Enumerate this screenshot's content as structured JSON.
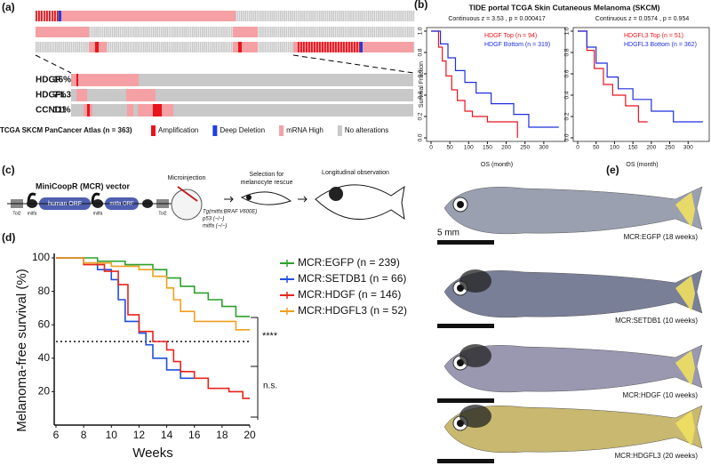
{
  "panel_labels": [
    "(a)",
    "(b)",
    "(c)",
    "(d)",
    "(e)"
  ],
  "panel_a": {
    "genes": [
      {
        "name": "HDGF",
        "pct": "16%"
      },
      {
        "name": "HDGFL3",
        "pct": "7%"
      },
      {
        "name": "CCND1",
        "pct": "11%"
      }
    ],
    "study": "TCGA SKCM PanCancer Atlas (n = 363)",
    "legend": [
      {
        "label": "Amplification",
        "color": "#e8141c"
      },
      {
        "label": "Deep Deletion",
        "color": "#1f3fe0"
      },
      {
        "label": "mRNA High",
        "color": "#f4a0a4"
      },
      {
        "label": "No alterations",
        "color": "#c8c8c8"
      }
    ]
  },
  "panel_b_title": "TIDE portal  TCGA Skin Cutaneous Melanoma (SKCM)",
  "chart_data": [
    {
      "type": "km",
      "subtitle": "Continuous z = 3.53 , p = 0.000417",
      "xlabel": "OS (month)",
      "ylabel": "Survival Fraction",
      "xlim": [
        0,
        350
      ],
      "xticks": [
        0,
        50,
        100,
        150,
        200,
        250,
        300
      ],
      "ylim": [
        0,
        1
      ],
      "yticks": [
        {
          "value": 0,
          "label": "0.0"
        },
        {
          "value": 0.2,
          "label": "0.2"
        },
        {
          "value": 0.4,
          "label": "0.4"
        },
        {
          "value": 0.6,
          "label": "0.6"
        },
        {
          "value": 0.8,
          "label": "0.8"
        },
        {
          "value": 1,
          "label": "1.0"
        }
      ],
      "series": [
        {
          "name": "HDGF Top (n = 94)",
          "color": "#e8141c",
          "x": [
            0,
            20,
            20,
            30,
            30,
            40,
            40,
            55,
            55,
            70,
            70,
            90,
            90,
            110,
            110,
            150,
            150,
            230,
            230
          ],
          "values": [
            1,
            1,
            0.85,
            0.85,
            0.72,
            0.72,
            0.58,
            0.58,
            0.45,
            0.45,
            0.35,
            0.35,
            0.25,
            0.25,
            0.2,
            0.2,
            0.15,
            0.15,
            0
          ]
        },
        {
          "name": "HDGF Bottom (n = 319)",
          "color": "#1f2fe0",
          "x": [
            0,
            25,
            25,
            45,
            45,
            65,
            65,
            90,
            90,
            120,
            120,
            160,
            160,
            220,
            220,
            260,
            260,
            340
          ],
          "values": [
            1,
            1,
            0.88,
            0.88,
            0.75,
            0.75,
            0.63,
            0.63,
            0.52,
            0.52,
            0.42,
            0.42,
            0.32,
            0.32,
            0.22,
            0.22,
            0.1,
            0.1
          ]
        }
      ]
    },
    {
      "type": "km",
      "subtitle": "Continuous z = 0.0574 , p = 0.954",
      "xlabel": "OS (month)",
      "xlim": [
        0,
        350
      ],
      "xticks": [
        0,
        50,
        100,
        150,
        200,
        250,
        300
      ],
      "ylim": [
        0,
        1
      ],
      "yticks": [
        {
          "value": 0,
          "label": "0.0"
        },
        {
          "value": 0.2,
          "label": "0.2"
        },
        {
          "value": 0.4,
          "label": "0.4"
        },
        {
          "value": 0.6,
          "label": "0.6"
        },
        {
          "value": 0.8,
          "label": "0.8"
        },
        {
          "value": 1,
          "label": "1.0"
        }
      ],
      "series": [
        {
          "name": "HDGFL3 Top (n = 51)",
          "color": "#e8141c",
          "x": [
            0,
            25,
            25,
            45,
            45,
            70,
            70,
            95,
            95,
            130,
            130,
            165,
            165,
            190
          ],
          "values": [
            1,
            1,
            0.82,
            0.82,
            0.65,
            0.65,
            0.5,
            0.5,
            0.4,
            0.4,
            0.3,
            0.3,
            0.15,
            0.15
          ]
        },
        {
          "name": "HDGFL3 Bottom (n = 362)",
          "color": "#1f2fe0",
          "x": [
            0,
            25,
            25,
            50,
            50,
            80,
            80,
            110,
            110,
            150,
            150,
            200,
            200,
            260,
            260,
            340
          ],
          "values": [
            1,
            1,
            0.85,
            0.85,
            0.7,
            0.7,
            0.57,
            0.57,
            0.46,
            0.46,
            0.36,
            0.36,
            0.25,
            0.25,
            0.15,
            0.15
          ]
        }
      ]
    },
    {
      "type": "km",
      "xlabel": "Weeks",
      "ylabel": "Melanoma-free survival (%)",
      "xlim": [
        6,
        20
      ],
      "xticks": [
        6,
        8,
        10,
        12,
        14,
        16,
        18,
        20
      ],
      "ylim": [
        0,
        100
      ],
      "yticks": [
        20,
        40,
        60,
        80,
        100
      ],
      "hline": 50,
      "annotations": [
        "****",
        "n.s."
      ],
      "series": [
        {
          "name": "MCR:EGFP (n = 239)",
          "color": "#2ca02c",
          "x": [
            6,
            9,
            9,
            11,
            11,
            13,
            13,
            14,
            14,
            15,
            15,
            16,
            16,
            17,
            17,
            18,
            18,
            19,
            19,
            20
          ],
          "values": [
            100,
            100,
            98,
            98,
            96,
            96,
            93,
            93,
            88,
            88,
            83,
            83,
            79,
            79,
            75,
            75,
            71,
            71,
            65,
            65
          ]
        },
        {
          "name": "MCR:SETDB1 (n = 66)",
          "color": "#1f4fe0",
          "x": [
            6,
            8,
            8,
            9,
            9,
            10,
            10,
            10.5,
            10.5,
            11,
            11,
            12,
            12,
            12.5,
            12.5,
            13,
            13,
            14,
            14,
            15,
            15,
            16
          ],
          "values": [
            100,
            100,
            97,
            97,
            93,
            93,
            87,
            87,
            75,
            75,
            62,
            62,
            55,
            55,
            48,
            48,
            40,
            40,
            33,
            33,
            28,
            28
          ]
        },
        {
          "name": "MCR:HDGF (n = 146)",
          "color": "#e8241c",
          "x": [
            6,
            8,
            8,
            9.5,
            9.5,
            10.5,
            10.5,
            11.2,
            11.2,
            12,
            12,
            13,
            13,
            14,
            14,
            14.5,
            14.5,
            15,
            15,
            16,
            16,
            17,
            17,
            18.5,
            18.5,
            19.5,
            19.5,
            20
          ],
          "values": [
            100,
            100,
            96,
            96,
            92,
            92,
            84,
            84,
            66,
            66,
            56,
            56,
            50,
            50,
            45,
            45,
            38,
            38,
            32,
            32,
            28,
            28,
            22,
            22,
            20,
            20,
            16,
            16
          ]
        },
        {
          "name": "MCR:HDGFL3 (n = 52)",
          "color": "#f0a020",
          "x": [
            6,
            8,
            8,
            10,
            10,
            12,
            12,
            13,
            13,
            14,
            14,
            14.5,
            14.5,
            15,
            15,
            16,
            16,
            19,
            19,
            20
          ],
          "values": [
            100,
            100,
            97,
            97,
            95,
            95,
            93,
            93,
            89,
            89,
            82,
            82,
            75,
            75,
            68,
            68,
            62,
            62,
            57,
            57
          ]
        }
      ]
    }
  ],
  "panel_c": {
    "vector": "MiniCoopR (MCR) vector",
    "tol2": "Tol2",
    "mitfa": "mitfa",
    "human_orf": "human ORF",
    "mitfa_orf": "mitfa ORF",
    "step1": "Microinjection",
    "genotype": [
      "Tg(mitfa:BRAF V600E)",
      "p53 (−/−)",
      "mitfa (−/−)"
    ],
    "step2": [
      "Selection for",
      "melanocyte rescue"
    ],
    "step3": "Longitudinal observation"
  },
  "panel_e": {
    "scale": "5 mm",
    "captions": [
      "MCR:EGFP (18 weeks)",
      "MCR:SETDB1 (10 weeks)",
      "MCR:HDGF (10 weeks)",
      "MCR:HDGFL3 (20 weeks)"
    ]
  }
}
